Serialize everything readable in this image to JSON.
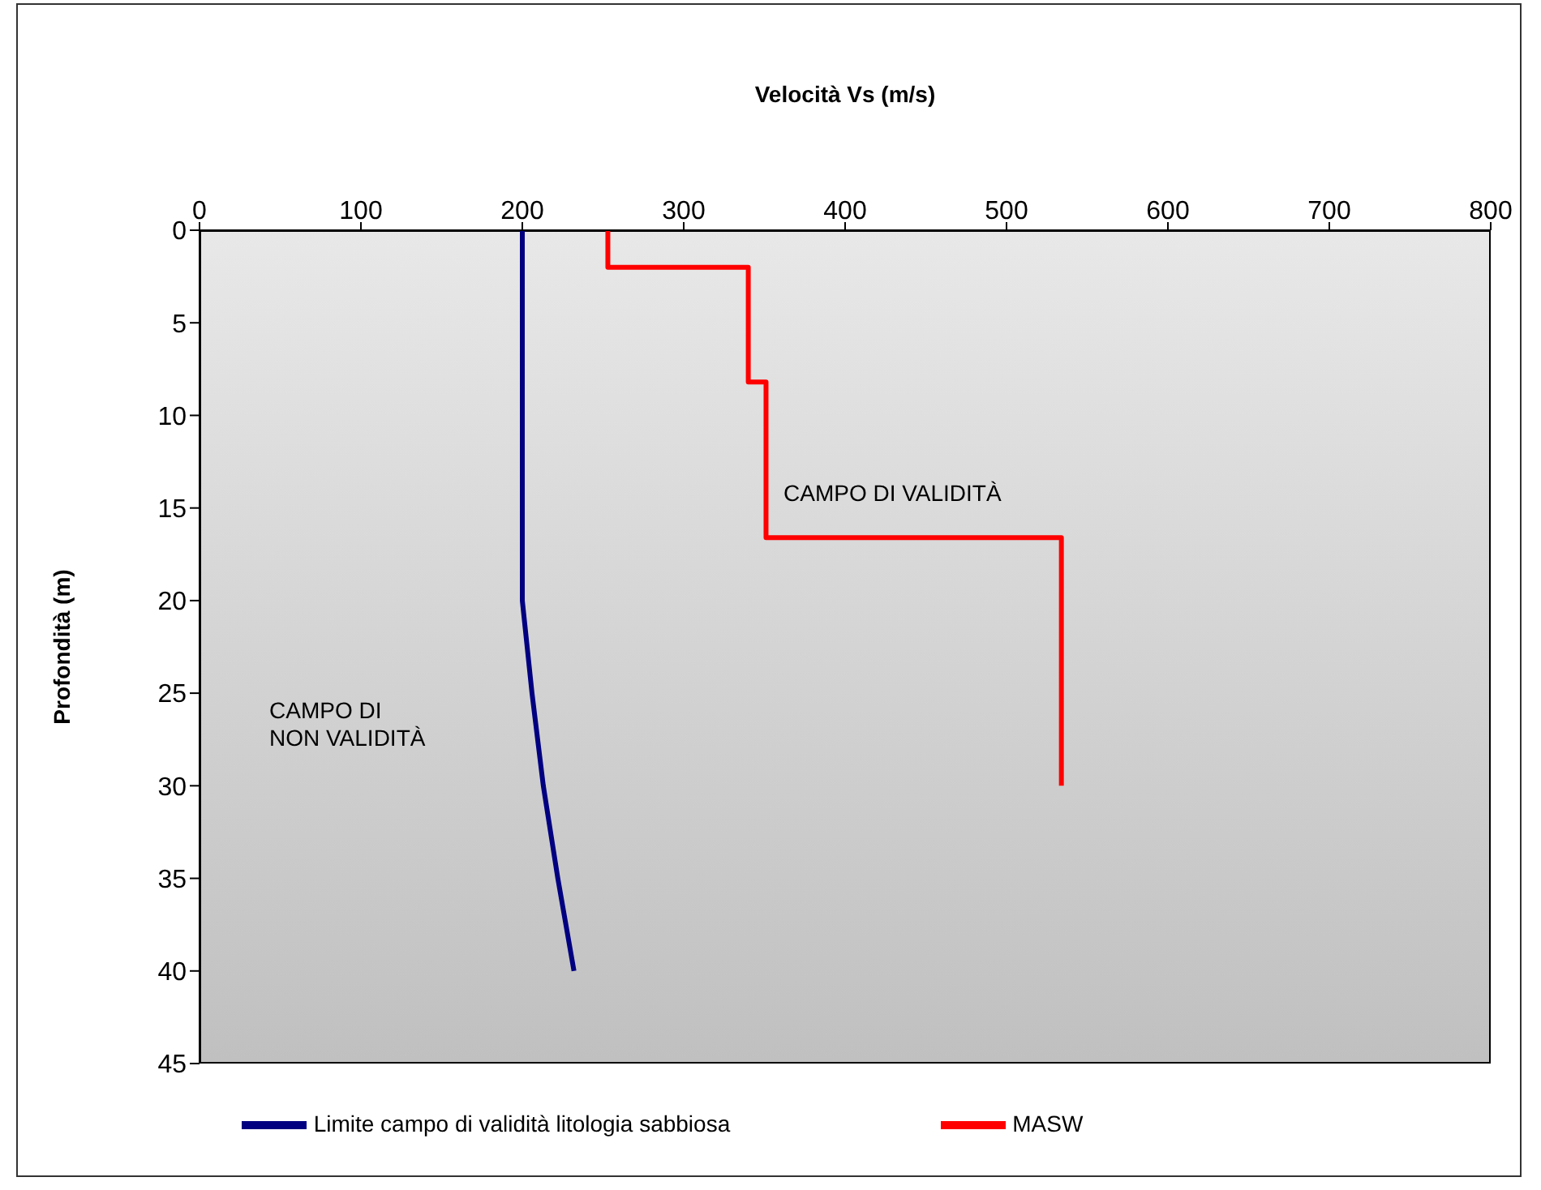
{
  "chart_data": {
    "type": "line",
    "xlabel": "Velocità Vs (m/s)",
    "ylabel": "Profondità (m)",
    "xlim": [
      0,
      800
    ],
    "xticks": [
      0,
      100,
      200,
      300,
      400,
      500,
      600,
      700,
      800
    ],
    "ylim": [
      45,
      0
    ],
    "yticks": [
      0,
      5,
      10,
      15,
      20,
      25,
      30,
      35,
      40,
      45
    ],
    "series": [
      {
        "name": "Limite campo di validità litologia sabbiosa",
        "color": "#000080",
        "x": [
          200,
          200,
          206,
          213,
          222,
          232
        ],
        "values": [
          0,
          20,
          25,
          30,
          35,
          40
        ]
      },
      {
        "name": "MASW",
        "color": "#ff0000",
        "x": [
          253,
          253,
          340,
          340,
          351,
          351,
          534,
          534
        ],
        "values": [
          0,
          2,
          2,
          8.2,
          8.2,
          16.6,
          16.6,
          30
        ]
      }
    ],
    "annotations": [
      "CAMPO DI VALIDITÀ",
      "CAMPO DI\nNON VALIDITÀ"
    ],
    "legend": "bottom",
    "marker": "none",
    "line_style": "solid"
  }
}
